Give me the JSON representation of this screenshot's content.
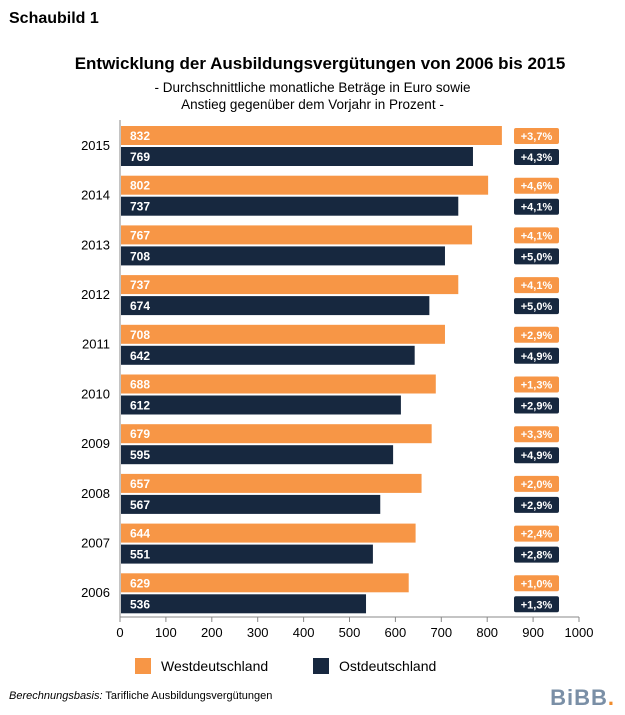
{
  "header": {
    "label": "Schaubild 1",
    "title": "Entwicklung der Ausbildungsvergütungen von 2006 bis 2015",
    "subtitle_line1": "- Durchschnittliche monatliche Beträge in Euro sowie",
    "subtitle_line2": "Anstieg gegenüber dem Vorjahr in Prozent -"
  },
  "chart_data": {
    "type": "bar",
    "orientation": "horizontal",
    "categories": [
      "2015",
      "2014",
      "2013",
      "2012",
      "2011",
      "2010",
      "2009",
      "2008",
      "2007",
      "2006"
    ],
    "series": [
      {
        "name": "Westdeutschland",
        "color": "#f79646",
        "values": [
          832,
          802,
          767,
          737,
          708,
          688,
          679,
          657,
          644,
          629
        ],
        "changes": [
          "+3,7%",
          "+4,6%",
          "+4,1%",
          "+4,1%",
          "+2,9%",
          "+1,3%",
          "+3,3%",
          "+2,0%",
          "+2,4%",
          "+1,0%"
        ]
      },
      {
        "name": "Ostdeutschland",
        "color": "#17283f",
        "values": [
          769,
          737,
          708,
          674,
          642,
          612,
          595,
          567,
          551,
          536
        ],
        "changes": [
          "+4,3%",
          "+4,1%",
          "+5,0%",
          "+5,0%",
          "+4,9%",
          "+2,9%",
          "+4,9%",
          "+2,9%",
          "+2,8%",
          "+1,3%"
        ]
      }
    ],
    "xlim": [
      0,
      1000
    ],
    "xticks": [
      "0",
      "100",
      "200",
      "300",
      "400",
      "500",
      "600",
      "700",
      "800",
      "900",
      "1000"
    ],
    "legend_position": "bottom"
  },
  "footer": {
    "basis_label": "Berechnungsbasis:",
    "basis_text": " Tarifliche Ausbildungsvergütungen",
    "logo_text": "BiBB",
    "logo_dot": "."
  }
}
